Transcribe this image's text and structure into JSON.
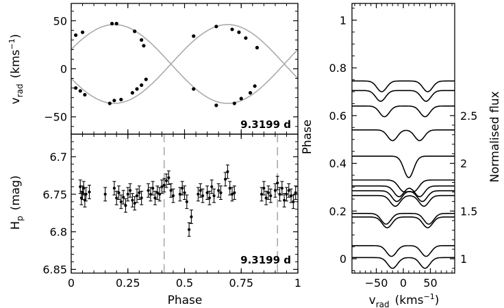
{
  "chart_data": [
    {
      "type": "line",
      "id": "rv",
      "ylabel_main": "v",
      "ylabel_sub": "rad",
      "ylabel_unit_pre": "(kms",
      "ylabel_unit_sup": "−1",
      "ylabel_unit_post": ")",
      "xlim": [
        0,
        1
      ],
      "ylim": [
        -68,
        68
      ],
      "yticks": [
        50,
        0,
        -50
      ],
      "ytick_labels": [
        "50",
        "0",
        "−50"
      ],
      "xticks": [
        0,
        0.25,
        0.5,
        0.75,
        1
      ],
      "curve_color": "#aaaaaa",
      "series": [
        {
          "amplitude": 41,
          "offset": 5,
          "phase_of_max": 0.19,
          "points": [
            [
              0.02,
              35
            ],
            [
              0.05,
              38
            ],
            [
              0.18,
              47
            ],
            [
              0.2,
              47
            ],
            [
              0.28,
              39
            ],
            [
              0.31,
              30
            ],
            [
              0.32,
              24
            ],
            [
              0.54,
              34
            ],
            [
              0.64,
              44
            ],
            [
              0.71,
              41
            ],
            [
              0.74,
              38
            ],
            [
              0.77,
              32
            ],
            [
              0.82,
              22
            ]
          ]
        },
        {
          "amplitude": 41,
          "offset": 5,
          "phase_of_max": 0.69,
          "points": [
            [
              0.02,
              -20
            ],
            [
              0.04,
              -23
            ],
            [
              0.06,
              -27
            ],
            [
              0.17,
              -36
            ],
            [
              0.19,
              -33
            ],
            [
              0.22,
              -32
            ],
            [
              0.27,
              -25
            ],
            [
              0.29,
              -21
            ],
            [
              0.31,
              -17
            ],
            [
              0.33,
              -11
            ],
            [
              0.54,
              -21
            ],
            [
              0.64,
              -38
            ],
            [
              0.72,
              -36
            ],
            [
              0.75,
              -31
            ],
            [
              0.79,
              -25
            ],
            [
              0.81,
              -18
            ]
          ]
        }
      ],
      "annotation": "9.3199 d"
    },
    {
      "type": "scatter",
      "id": "hp",
      "ylabel_main": "H",
      "ylabel_sub": "p",
      "ylabel_unit": "(mag)",
      "xlabel": "Phase",
      "xlim": [
        0,
        1
      ],
      "ylim": [
        6.855,
        6.67
      ],
      "yticks": [
        6.7,
        6.75,
        6.8,
        6.85
      ],
      "ytick_labels": [
        "6.7",
        "6.75",
        "6.8",
        "6.85"
      ],
      "xticks": [
        0,
        0.25,
        0.5,
        0.75,
        1
      ],
      "xtick_labels": [
        "0",
        "0.25",
        "0.5",
        "0.75",
        "1"
      ],
      "eclipse_phases": [
        0.41,
        0.91
      ],
      "annotation": "9.3199 d",
      "points": [
        [
          0.04,
          6.74
        ],
        [
          0.045,
          6.755
        ],
        [
          0.05,
          6.748
        ],
        [
          0.055,
          6.742
        ],
        [
          0.06,
          6.758
        ],
        [
          0.065,
          6.75
        ],
        [
          0.08,
          6.747
        ],
        [
          0.15,
          6.75
        ],
        [
          0.19,
          6.742
        ],
        [
          0.2,
          6.755
        ],
        [
          0.21,
          6.748
        ],
        [
          0.22,
          6.76
        ],
        [
          0.23,
          6.754
        ],
        [
          0.24,
          6.765
        ],
        [
          0.25,
          6.75
        ],
        [
          0.26,
          6.745
        ],
        [
          0.27,
          6.758
        ],
        [
          0.28,
          6.762
        ],
        [
          0.29,
          6.752
        ],
        [
          0.3,
          6.748
        ],
        [
          0.31,
          6.755
        ],
        [
          0.34,
          6.745
        ],
        [
          0.35,
          6.75
        ],
        [
          0.36,
          6.742
        ],
        [
          0.37,
          6.755
        ],
        [
          0.38,
          6.748
        ],
        [
          0.39,
          6.75
        ],
        [
          0.4,
          6.74
        ],
        [
          0.41,
          6.738
        ],
        [
          0.42,
          6.732
        ],
        [
          0.43,
          6.728
        ],
        [
          0.44,
          6.745
        ],
        [
          0.45,
          6.752
        ],
        [
          0.48,
          6.75
        ],
        [
          0.49,
          6.742
        ],
        [
          0.5,
          6.748
        ],
        [
          0.51,
          6.76
        ],
        [
          0.52,
          6.797
        ],
        [
          0.53,
          6.78
        ],
        [
          0.56,
          6.75
        ],
        [
          0.57,
          6.745
        ],
        [
          0.58,
          6.752
        ],
        [
          0.6,
          6.748
        ],
        [
          0.61,
          6.755
        ],
        [
          0.62,
          6.74
        ],
        [
          0.63,
          6.752
        ],
        [
          0.65,
          6.745
        ],
        [
          0.66,
          6.748
        ],
        [
          0.68,
          6.73
        ],
        [
          0.69,
          6.72
        ],
        [
          0.7,
          6.742
        ],
        [
          0.71,
          6.75
        ],
        [
          0.72,
          6.748
        ],
        [
          0.84,
          6.75
        ],
        [
          0.85,
          6.742
        ],
        [
          0.86,
          6.755
        ],
        [
          0.87,
          6.748
        ],
        [
          0.88,
          6.752
        ],
        [
          0.9,
          6.745
        ],
        [
          0.91,
          6.735
        ],
        [
          0.92,
          6.75
        ],
        [
          0.93,
          6.742
        ],
        [
          0.94,
          6.758
        ],
        [
          0.95,
          6.75
        ],
        [
          0.96,
          6.745
        ],
        [
          0.97,
          6.752
        ],
        [
          0.98,
          6.76
        ],
        [
          0.99,
          6.748
        ]
      ]
    },
    {
      "type": "line",
      "id": "profiles",
      "ylabel_left": "Phase",
      "ylabel_right": "Normalised flux",
      "xlabel_main": "v",
      "xlabel_sub": "rad",
      "xlabel_unit_pre": "(kms",
      "xlabel_unit_sup": "−1",
      "xlabel_unit_post": ")",
      "xlim": [
        -95,
        95
      ],
      "xticks": [
        -50,
        0,
        50
      ],
      "xtick_labels": [
        "−50",
        "0",
        "50"
      ],
      "left_ylim": [
        -0.06,
        1.07
      ],
      "left_yticks": [
        0,
        0.2,
        0.4,
        0.6,
        0.8,
        1
      ],
      "left_ytick_labels": [
        "0",
        "0.2",
        "0.4",
        "0.6",
        "0.8",
        "1"
      ],
      "right_yticks": [
        1,
        1.5,
        2,
        2.5
      ],
      "right_ytick_labels": [
        "1",
        "1.5",
        "2",
        "2.5"
      ],
      "right_flux_per_phase": 2.5,
      "profiles": [
        {
          "phase": 0.005,
          "v1": -20,
          "v2": 40
        },
        {
          "phase": 0.055,
          "v1": -22,
          "v2": 42
        },
        {
          "phase": 0.175,
          "v1": -30,
          "v2": 45
        },
        {
          "phase": 0.19,
          "v1": -32,
          "v2": 47
        },
        {
          "phase": 0.265,
          "v1": -15,
          "v2": 38
        },
        {
          "phase": 0.285,
          "v1": -12,
          "v2": 35
        },
        {
          "phase": 0.305,
          "v1": -8,
          "v2": 30
        },
        {
          "phase": 0.33,
          "v1": 0,
          "v2": 20
        },
        {
          "phase": 0.43,
          "v1": 10,
          "v2": 10
        },
        {
          "phase": 0.54,
          "v1": -20,
          "v2": 30
        },
        {
          "phase": 0.64,
          "v1": -35,
          "v2": 40
        },
        {
          "phase": 0.705,
          "v1": -42,
          "v2": 42
        },
        {
          "phase": 0.745,
          "v1": -40,
          "v2": 45
        }
      ]
    }
  ]
}
